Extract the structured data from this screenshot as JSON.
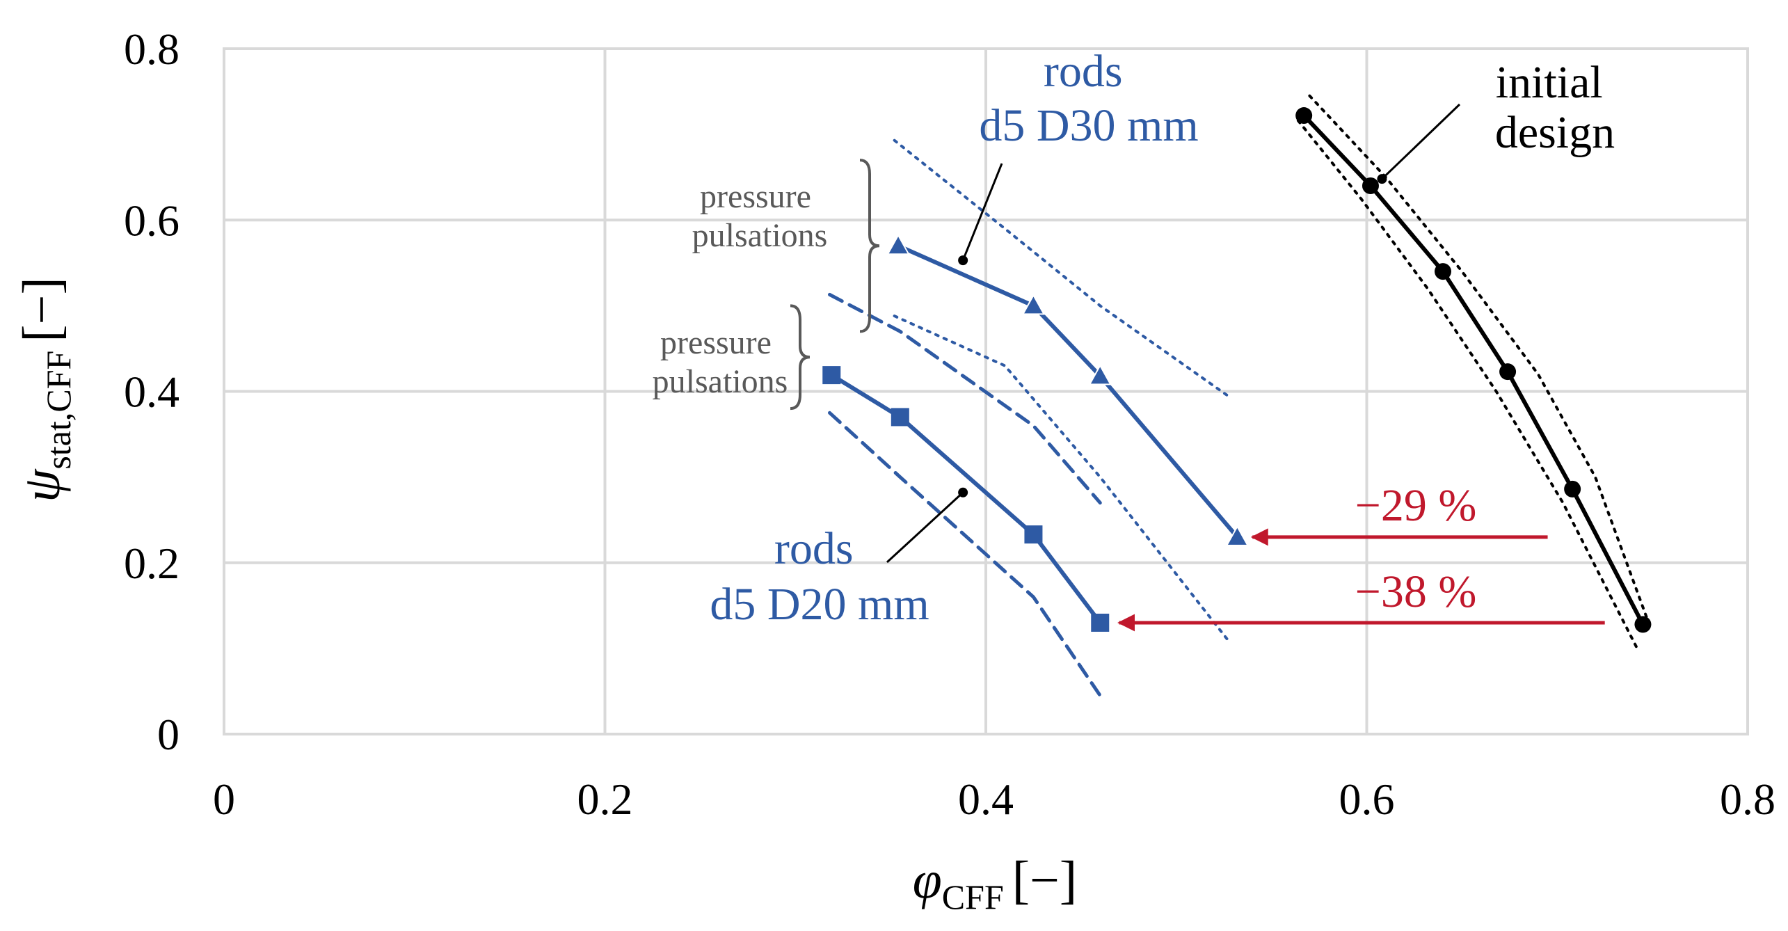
{
  "chart_data": {
    "type": "line",
    "xlim": [
      0,
      0.8
    ],
    "ylim": [
      0,
      0.8
    ],
    "grid": true,
    "x_ticks": [
      0,
      0.2,
      0.4,
      0.6,
      0.8
    ],
    "y_ticks": [
      0,
      0.2,
      0.4,
      0.6,
      0.8
    ],
    "x_tick_labels": [
      "0",
      "0.2",
      "0.4",
      "0.6",
      "0.8"
    ],
    "y_tick_labels": [
      "0",
      "0.2",
      "0.4",
      "0.6",
      "0.8"
    ],
    "xlabel": {
      "symbol": "φ",
      "subscript": "CFF",
      "unit": "[−]"
    },
    "ylabel": {
      "symbol": "ψ",
      "subscript": "stat,CFF",
      "unit": "[−]"
    },
    "colors": {
      "blue": "#2e5aa4",
      "black": "#000000",
      "red": "#c0182c",
      "gray": "#595959",
      "grid": "#d9d9d9"
    },
    "series": [
      {
        "name": "initial design",
        "color": "#000000",
        "marker": "circle",
        "x": [
          0.567,
          0.602,
          0.64,
          0.674,
          0.708,
          0.745
        ],
        "y": [
          0.722,
          0.64,
          0.54,
          0.423,
          0.286,
          0.128
        ],
        "bounds": {
          "style": "dotted",
          "upper": {
            "x": [
              0.57,
              0.61,
              0.65,
              0.69,
              0.72,
              0.748
            ],
            "y": [
              0.745,
              0.65,
              0.54,
              0.42,
              0.3,
              0.13
            ]
          },
          "lower": {
            "x": [
              0.564,
              0.597,
              0.632,
              0.668,
              0.703,
              0.742
            ],
            "y": [
              0.716,
              0.625,
              0.52,
              0.4,
              0.27,
              0.1
            ]
          }
        }
      },
      {
        "name": "rods d5 D30 mm",
        "color": "#2e5aa4",
        "marker": "triangle",
        "x": [
          0.354,
          0.425,
          0.46,
          0.532
        ],
        "y": [
          0.57,
          0.5,
          0.418,
          0.23
        ],
        "bounds": {
          "style": "dotted",
          "upper": {
            "x": [
              0.352,
              0.41,
              0.46,
              0.527
            ],
            "y": [
              0.693,
              0.59,
              0.5,
              0.395
            ]
          },
          "lower": {
            "x": [
              0.352,
              0.41,
              0.46,
              0.527
            ],
            "y": [
              0.488,
              0.43,
              0.3,
              0.11
            ]
          }
        }
      },
      {
        "name": "rods d5 D20 mm",
        "color": "#2e5aa4",
        "marker": "square",
        "x": [
          0.319,
          0.355,
          0.425,
          0.46
        ],
        "y": [
          0.419,
          0.37,
          0.233,
          0.13
        ],
        "bounds": {
          "style": "dashed",
          "upper": {
            "x": [
              0.318,
              0.355,
              0.425,
              0.46
            ],
            "y": [
              0.513,
              0.47,
              0.36,
              0.27
            ]
          },
          "lower": {
            "x": [
              0.318,
              0.355,
              0.425,
              0.46
            ],
            "y": [
              0.375,
              0.3,
              0.16,
              0.045
            ]
          }
        }
      }
    ],
    "annotations": {
      "initial_design": {
        "lines": [
          "initial",
          "design"
        ],
        "pointer_to": [
          0.608,
          0.648
        ]
      },
      "rods_d30": {
        "lines": [
          "rods",
          "d5 D30 mm"
        ],
        "pointer_to": [
          0.388,
          0.553
        ]
      },
      "rods_d20": {
        "lines": [
          "rods",
          "d5 D20 mm"
        ],
        "pointer_to": [
          0.388,
          0.282
        ]
      },
      "pressure_1": {
        "lines": [
          "pressure",
          "pulsations"
        ],
        "brace_y": [
          0.47,
          0.67
        ]
      },
      "pressure_2": {
        "lines": [
          "pressure",
          "pulsations"
        ],
        "brace_y": [
          0.38,
          0.5
        ]
      },
      "arrow_29": {
        "label": "−29 %",
        "from": [
          0.695,
          0.23
        ],
        "to": [
          0.54,
          0.23
        ]
      },
      "arrow_38": {
        "label": "−38 %",
        "from": [
          0.725,
          0.13
        ],
        "to": [
          0.47,
          0.13
        ]
      }
    }
  }
}
